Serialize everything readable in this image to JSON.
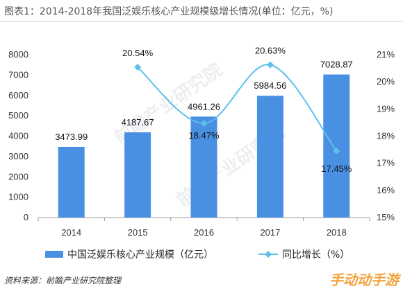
{
  "title": "图表1：2014-2018年我国泛娱乐核心产业规模级增长情况(单位：亿元，%)",
  "source": "资料来源：前瞻产业研究院整理",
  "watermark": "前瞻产业研究院",
  "corner_logo": "手动动手游",
  "colors": {
    "bar": "#4a90e2",
    "line": "#5bc0eb",
    "axis": "#999999",
    "text": "#333333"
  },
  "chart_data": {
    "type": "bar",
    "categories": [
      "2014",
      "2015",
      "2016",
      "2017",
      "2018"
    ],
    "series": [
      {
        "name": "中国泛娱乐核心产业规模（亿元）",
        "type": "bar",
        "axis": "left",
        "values": [
          3473.99,
          4187.67,
          4961.26,
          5984.56,
          7028.87
        ],
        "labels": [
          "3473.99",
          "4187.67",
          "4961.26",
          "5984.56",
          "7028.87"
        ]
      },
      {
        "name": "同比增长（%）",
        "type": "line",
        "axis": "right",
        "values": [
          null,
          20.54,
          18.47,
          20.63,
          17.45
        ],
        "labels": [
          "",
          "20.54%",
          "18.47%",
          "20.63%",
          "17.45%"
        ]
      }
    ],
    "ylim_left": [
      0,
      8000
    ],
    "yticks_left": [
      "0",
      "1000",
      "2000",
      "3000",
      "4000",
      "5000",
      "6000",
      "7000",
      "8000"
    ],
    "ylim_right": [
      15,
      21
    ],
    "yticks_right": [
      "15%",
      "16%",
      "17%",
      "18%",
      "19%",
      "20%",
      "21%"
    ],
    "grid": false,
    "legend": "bottom"
  }
}
